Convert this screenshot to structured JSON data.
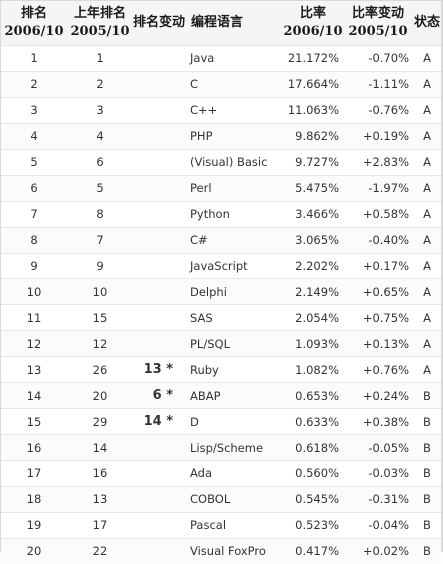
{
  "header": {
    "rank_label": "排名",
    "rank_year": "2006/10",
    "prev_rank_label": "上年排名",
    "prev_rank_year": "2005/10",
    "rank_change_label": "排名变动",
    "language_label": "编程语言",
    "ratio_label": "比率",
    "ratio_year": "2006/10",
    "ratio_change_label": "比率变动",
    "ratio_change_year": "2005/10",
    "status_label": "状态"
  },
  "rows": [
    {
      "rank": "1",
      "prev": "1",
      "change": "",
      "lang": "Java",
      "ratio": "21.172%",
      "delta": "-0.70%",
      "status": "A"
    },
    {
      "rank": "2",
      "prev": "2",
      "change": "",
      "lang": "C",
      "ratio": "17.664%",
      "delta": "-1.11%",
      "status": "A"
    },
    {
      "rank": "3",
      "prev": "3",
      "change": "",
      "lang": "C++",
      "ratio": "11.063%",
      "delta": "-0.76%",
      "status": "A"
    },
    {
      "rank": "4",
      "prev": "4",
      "change": "",
      "lang": "PHP",
      "ratio": "9.862%",
      "delta": "+0.19%",
      "status": "A"
    },
    {
      "rank": "5",
      "prev": "6",
      "change": "",
      "lang": "(Visual) Basic",
      "ratio": "9.727%",
      "delta": "+2.83%",
      "status": "A"
    },
    {
      "rank": "6",
      "prev": "5",
      "change": "",
      "lang": "Perl",
      "ratio": "5.475%",
      "delta": "-1.97%",
      "status": "A"
    },
    {
      "rank": "7",
      "prev": "8",
      "change": "",
      "lang": "Python",
      "ratio": "3.466%",
      "delta": "+0.58%",
      "status": "A"
    },
    {
      "rank": "8",
      "prev": "7",
      "change": "",
      "lang": "C#",
      "ratio": "3.065%",
      "delta": "-0.40%",
      "status": "A"
    },
    {
      "rank": "9",
      "prev": "9",
      "change": "",
      "lang": "JavaScript",
      "ratio": "2.202%",
      "delta": "+0.17%",
      "status": "A"
    },
    {
      "rank": "10",
      "prev": "10",
      "change": "",
      "lang": "Delphi",
      "ratio": "2.149%",
      "delta": "+0.65%",
      "status": "A"
    },
    {
      "rank": "11",
      "prev": "15",
      "change": "",
      "lang": "SAS",
      "ratio": "2.054%",
      "delta": "+0.75%",
      "status": "A"
    },
    {
      "rank": "12",
      "prev": "12",
      "change": "",
      "lang": "PL/SQL",
      "ratio": "1.093%",
      "delta": "+0.13%",
      "status": "A"
    },
    {
      "rank": "13",
      "prev": "26",
      "change": "13 *",
      "lang": "Ruby",
      "ratio": "1.082%",
      "delta": "+0.76%",
      "status": "A"
    },
    {
      "rank": "14",
      "prev": "20",
      "change": "6 *",
      "lang": "ABAP",
      "ratio": "0.653%",
      "delta": "+0.24%",
      "status": "B"
    },
    {
      "rank": "15",
      "prev": "29",
      "change": "14 *",
      "lang": "D",
      "ratio": "0.633%",
      "delta": "+0.38%",
      "status": "B"
    },
    {
      "rank": "16",
      "prev": "14",
      "change": "",
      "lang": "Lisp/Scheme",
      "ratio": "0.618%",
      "delta": "-0.05%",
      "status": "B"
    },
    {
      "rank": "17",
      "prev": "16",
      "change": "",
      "lang": "Ada",
      "ratio": "0.560%",
      "delta": "-0.03%",
      "status": "B"
    },
    {
      "rank": "18",
      "prev": "13",
      "change": "",
      "lang": "COBOL",
      "ratio": "0.545%",
      "delta": "-0.31%",
      "status": "B"
    },
    {
      "rank": "19",
      "prev": "17",
      "change": "",
      "lang": "Pascal",
      "ratio": "0.523%",
      "delta": "-0.04%",
      "status": "B"
    },
    {
      "rank": "20",
      "prev": "22",
      "change": "",
      "lang": "Visual FoxPro",
      "ratio": "0.417%",
      "delta": "+0.02%",
      "status": "B"
    }
  ]
}
